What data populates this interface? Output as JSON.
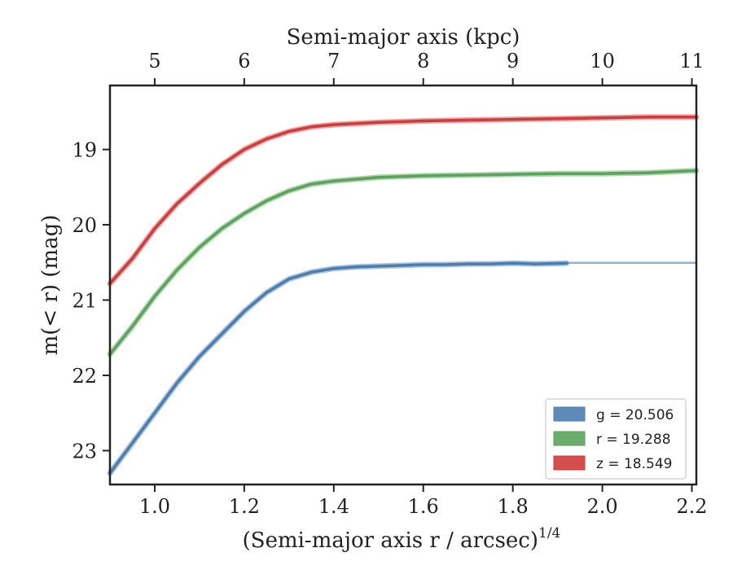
{
  "chart_data": {
    "type": "line",
    "xlabel": "(Semi-major axis r / arcsec)",
    "xlabel_exponent": "1/4",
    "x2label": "Semi-major axis (kpc)",
    "ylabel": "m(< r) (mag)",
    "xlim": [
      0.9,
      2.21
    ],
    "ylim": [
      23.45,
      18.15
    ],
    "y_inverted": true,
    "xticks": [
      1.0,
      1.2,
      1.4,
      1.6,
      1.8,
      2.0,
      2.2
    ],
    "xtick_labels": [
      "1.0",
      "1.2",
      "1.4",
      "1.6",
      "1.8",
      "2.0",
      "2.2"
    ],
    "yticks": [
      19,
      20,
      21,
      22,
      23
    ],
    "ytick_labels": [
      "19",
      "20",
      "21",
      "22",
      "23"
    ],
    "x2ticks": [
      1.0,
      1.2,
      1.4,
      1.6,
      1.8,
      2.0,
      2.2
    ],
    "x2tick_labels": [
      "5",
      "6",
      "7",
      "8",
      "9",
      "10",
      "11"
    ],
    "grid": false,
    "legend_position": "bottom-right",
    "series": [
      {
        "band": "g",
        "legend_label": "g = 20.506",
        "color": "#4a7eb0",
        "x": [
          0.9,
          0.95,
          1.0,
          1.05,
          1.1,
          1.15,
          1.2,
          1.25,
          1.3,
          1.35,
          1.4,
          1.45,
          1.5,
          1.55,
          1.6,
          1.65,
          1.7,
          1.75,
          1.8,
          1.85,
          1.92
        ],
        "y": [
          23.3,
          22.9,
          22.5,
          22.1,
          21.75,
          21.45,
          21.15,
          20.9,
          20.72,
          20.63,
          20.58,
          20.56,
          20.55,
          20.54,
          20.53,
          20.53,
          20.52,
          20.52,
          20.51,
          20.52,
          20.51
        ],
        "extension_x": [
          1.92,
          2.21
        ],
        "extension_y": [
          20.506,
          20.506
        ]
      },
      {
        "band": "r",
        "legend_label": "r = 19.288",
        "color": "#5aa35a",
        "x": [
          0.9,
          0.95,
          1.0,
          1.05,
          1.1,
          1.15,
          1.2,
          1.25,
          1.3,
          1.35,
          1.4,
          1.5,
          1.6,
          1.7,
          1.8,
          1.9,
          2.0,
          2.1,
          2.21
        ],
        "y": [
          21.72,
          21.35,
          20.95,
          20.6,
          20.3,
          20.05,
          19.85,
          19.68,
          19.55,
          19.46,
          19.42,
          19.37,
          19.35,
          19.34,
          19.33,
          19.32,
          19.32,
          19.31,
          19.28
        ]
      },
      {
        "band": "z",
        "legend_label": "z = 18.549",
        "color": "#d03b3b",
        "x": [
          0.9,
          0.95,
          1.0,
          1.05,
          1.1,
          1.15,
          1.2,
          1.25,
          1.3,
          1.35,
          1.4,
          1.5,
          1.6,
          1.7,
          1.8,
          1.9,
          2.0,
          2.1,
          2.21
        ],
        "y": [
          20.78,
          20.45,
          20.05,
          19.72,
          19.45,
          19.2,
          19.0,
          18.86,
          18.76,
          18.7,
          18.67,
          18.64,
          18.62,
          18.61,
          18.6,
          18.59,
          18.58,
          18.57,
          18.57
        ]
      }
    ]
  }
}
